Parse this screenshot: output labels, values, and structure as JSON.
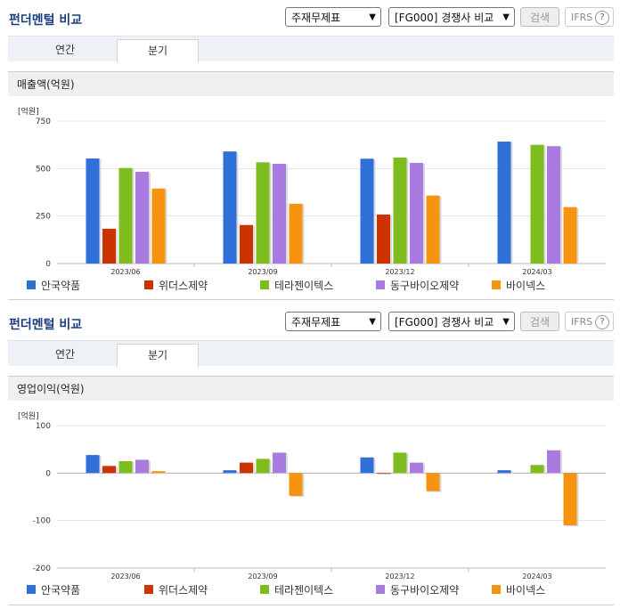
{
  "header": {
    "title": "펀더멘털 비교",
    "select1": "주재무제표",
    "select2": "[FG000] 경쟁사 비교",
    "search_label": "검색",
    "ifrs_label": "IFRS",
    "help": "?"
  },
  "tabs": {
    "annual": "연간",
    "quarterly": "분기"
  },
  "colors": [
    "#2f6fd8",
    "#cc3300",
    "#7fbd1f",
    "#a97be0",
    "#f7940f"
  ],
  "legend": [
    "안국약품",
    "위더스제약",
    "테라젠이텍스",
    "동구바이오제약",
    "바이넥스"
  ],
  "charts": [
    {
      "section_title": "매출액(억원)",
      "unit": "[억원]",
      "chart_data": {
        "type": "bar",
        "categories": [
          "2023/06",
          "2023/09",
          "2023/12",
          "2024/03"
        ],
        "ylim": [
          0,
          750
        ],
        "yticks": [
          0,
          250,
          500,
          750
        ],
        "series": [
          {
            "name": "안국약품",
            "values": [
              553,
              590,
              552,
              642
            ]
          },
          {
            "name": "위더스제약",
            "values": [
              183,
              203,
              258,
              null
            ]
          },
          {
            "name": "테라젠이텍스",
            "values": [
              503,
              533,
              558,
              625
            ]
          },
          {
            "name": "동구바이오제약",
            "values": [
              483,
              525,
              530,
              618
            ]
          },
          {
            "name": "바이넥스",
            "values": [
              395,
              315,
              358,
              297
            ]
          }
        ]
      }
    },
    {
      "section_title": "영업이익(억원)",
      "unit": "[억원]",
      "chart_data": {
        "type": "bar",
        "categories": [
          "2023/06",
          "2023/09",
          "2023/12",
          "2024/03"
        ],
        "ylim": [
          -200,
          100
        ],
        "yticks": [
          -200,
          -100,
          0,
          100
        ],
        "series": [
          {
            "name": "안국약품",
            "values": [
              38,
              6,
              33,
              6
            ]
          },
          {
            "name": "위더스제약",
            "values": [
              15,
              22,
              0,
              null
            ]
          },
          {
            "name": "테라젠이텍스",
            "values": [
              25,
              30,
              43,
              17
            ]
          },
          {
            "name": "동구바이오제약",
            "values": [
              28,
              43,
              22,
              48
            ]
          },
          {
            "name": "바이넥스",
            "values": [
              4,
              -48,
              -38,
              -110
            ]
          }
        ]
      }
    }
  ]
}
